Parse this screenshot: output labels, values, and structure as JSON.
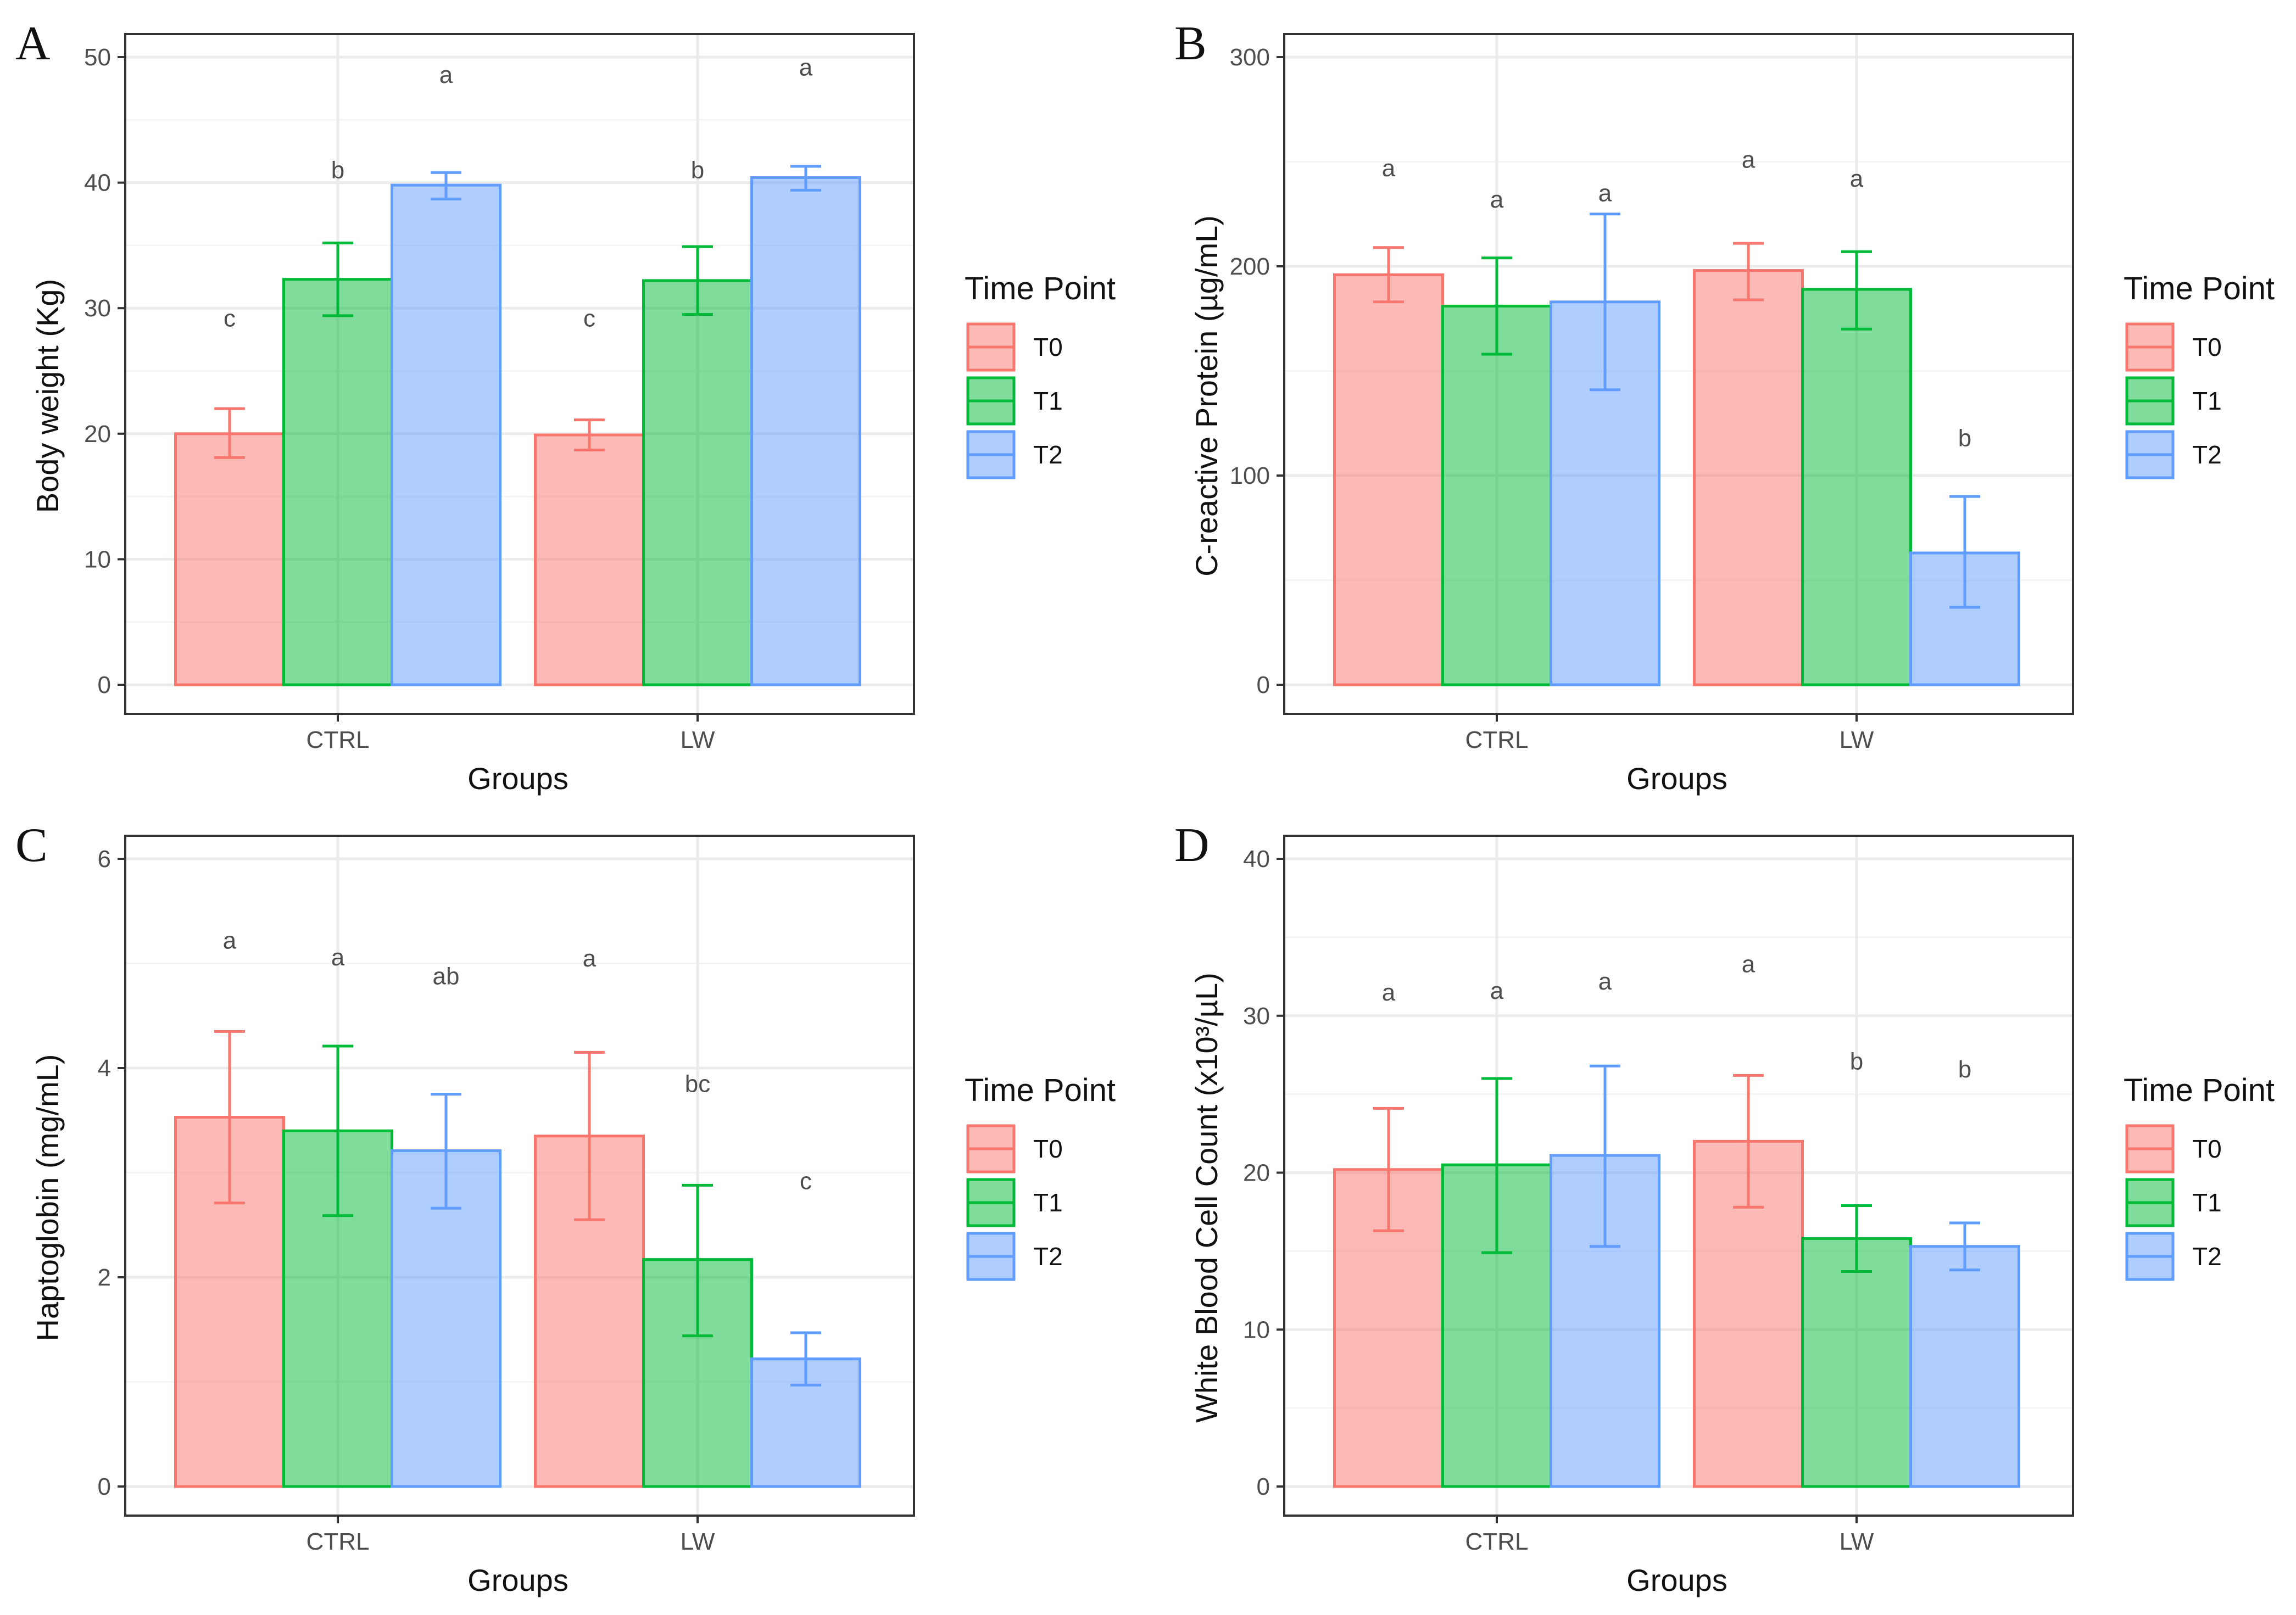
{
  "figure": {
    "colors": {
      "T0": {
        "fill": "#f8766d",
        "stroke": "#f8766d"
      },
      "T1": {
        "fill": "#00ba38",
        "stroke": "#00ba38"
      },
      "T2": {
        "fill": "#619cff",
        "stroke": "#619cff"
      },
      "panel_border": "#333333",
      "grid_major": "#ebebeb",
      "grid_minor": "#f4f4f4",
      "error_bar_alpha": 1
    }
  },
  "chart_data": [
    {
      "panel_letter": "A",
      "type": "bar",
      "xlabel": "Groups",
      "ylabel": "Body weight (Kg)",
      "ylim": [
        0,
        50
      ],
      "yticks": [
        0,
        10,
        20,
        30,
        40,
        50
      ],
      "minor_step": 5,
      "grid": true,
      "legend": {
        "title": "Time Point",
        "position": "right",
        "entries": [
          "T0",
          "T1",
          "T2"
        ]
      },
      "categories": [
        "CTRL",
        "LW"
      ],
      "series": [
        {
          "name": "T0",
          "values": [
            20.0,
            19.9
          ],
          "err_low": [
            18.1,
            18.7
          ],
          "err_high": [
            22.0,
            21.1
          ],
          "labels": [
            "c",
            "c"
          ],
          "label_y": [
            29.2,
            29.2
          ]
        },
        {
          "name": "T1",
          "values": [
            32.3,
            32.2
          ],
          "err_low": [
            29.4,
            29.5
          ],
          "err_high": [
            35.2,
            34.9
          ],
          "labels": [
            "b",
            "b"
          ],
          "label_y": [
            41.0,
            41.0
          ]
        },
        {
          "name": "T2",
          "values": [
            39.8,
            40.4
          ],
          "err_low": [
            38.7,
            39.4
          ],
          "err_high": [
            40.8,
            41.3
          ],
          "labels": [
            "a",
            "a"
          ],
          "label_y": [
            48.6,
            49.2
          ]
        }
      ]
    },
    {
      "panel_letter": "B",
      "type": "bar",
      "xlabel": "Groups",
      "ylabel": "C-reactive Protein (µg/mL)",
      "ylim": [
        0,
        300
      ],
      "yticks": [
        0,
        100,
        200,
        300
      ],
      "minor_step": 50,
      "grid": true,
      "legend": {
        "title": "Time Point",
        "position": "right",
        "entries": [
          "T0",
          "T1",
          "T2"
        ]
      },
      "categories": [
        "CTRL",
        "LW"
      ],
      "series": [
        {
          "name": "T0",
          "values": [
            196,
            198
          ],
          "err_low": [
            183,
            184
          ],
          "err_high": [
            209,
            211
          ],
          "labels": [
            "a",
            "a"
          ],
          "label_y": [
            247,
            251
          ]
        },
        {
          "name": "T1",
          "values": [
            181,
            189
          ],
          "err_low": [
            158,
            170
          ],
          "err_high": [
            204,
            207
          ],
          "labels": [
            "a",
            "a"
          ],
          "label_y": [
            232,
            242
          ]
        },
        {
          "name": "T2",
          "values": [
            183,
            63
          ],
          "err_low": [
            141,
            37
          ],
          "err_high": [
            225,
            90
          ],
          "labels": [
            "a",
            "b"
          ],
          "label_y": [
            235,
            118
          ]
        }
      ]
    },
    {
      "panel_letter": "C",
      "type": "bar",
      "xlabel": "Groups",
      "ylabel": "Haptoglobin (mg/mL)",
      "ylim": [
        0,
        6
      ],
      "yticks": [
        0,
        2,
        4,
        6
      ],
      "minor_step": 1,
      "grid": true,
      "legend": {
        "title": "Time Point",
        "position": "right",
        "entries": [
          "T0",
          "T1",
          "T2"
        ]
      },
      "categories": [
        "CTRL",
        "LW"
      ],
      "series": [
        {
          "name": "T0",
          "values": [
            3.53,
            3.35
          ],
          "err_low": [
            2.71,
            2.55
          ],
          "err_high": [
            4.35,
            4.15
          ],
          "labels": [
            "a",
            "a"
          ],
          "label_y": [
            5.22,
            5.05
          ]
        },
        {
          "name": "T1",
          "values": [
            3.4,
            2.17
          ],
          "err_low": [
            2.59,
            1.44
          ],
          "err_high": [
            4.21,
            2.88
          ],
          "labels": [
            "a",
            "bc"
          ],
          "label_y": [
            5.06,
            3.85
          ]
        },
        {
          "name": "T2",
          "values": [
            3.21,
            1.22
          ],
          "err_low": [
            2.66,
            0.97
          ],
          "err_high": [
            3.75,
            1.47
          ],
          "labels": [
            "ab",
            "c"
          ],
          "label_y": [
            4.88,
            2.92
          ]
        }
      ]
    },
    {
      "panel_letter": "D",
      "type": "bar",
      "xlabel": "Groups",
      "ylabel": "White Blood Cell Count (x10³/µL)",
      "ylim": [
        0,
        40
      ],
      "yticks": [
        0,
        10,
        20,
        30,
        40
      ],
      "minor_step": 5,
      "grid": true,
      "legend": {
        "title": "Time Point",
        "position": "right",
        "entries": [
          "T0",
          "T1",
          "T2"
        ]
      },
      "categories": [
        "CTRL",
        "LW"
      ],
      "series": [
        {
          "name": "T0",
          "values": [
            20.2,
            22.0
          ],
          "err_low": [
            16.3,
            17.8
          ],
          "err_high": [
            24.1,
            26.2
          ],
          "labels": [
            "a",
            "a"
          ],
          "label_y": [
            31.5,
            33.3
          ]
        },
        {
          "name": "T1",
          "values": [
            20.5,
            15.8
          ],
          "err_low": [
            14.9,
            13.7
          ],
          "err_high": [
            26.0,
            17.9
          ],
          "labels": [
            "a",
            "b"
          ],
          "label_y": [
            31.6,
            27.1
          ]
        },
        {
          "name": "T2",
          "values": [
            21.1,
            15.3
          ],
          "err_low": [
            15.3,
            13.8
          ],
          "err_high": [
            26.8,
            16.8
          ],
          "labels": [
            "a",
            "b"
          ],
          "label_y": [
            32.2,
            26.6
          ]
        }
      ]
    }
  ]
}
